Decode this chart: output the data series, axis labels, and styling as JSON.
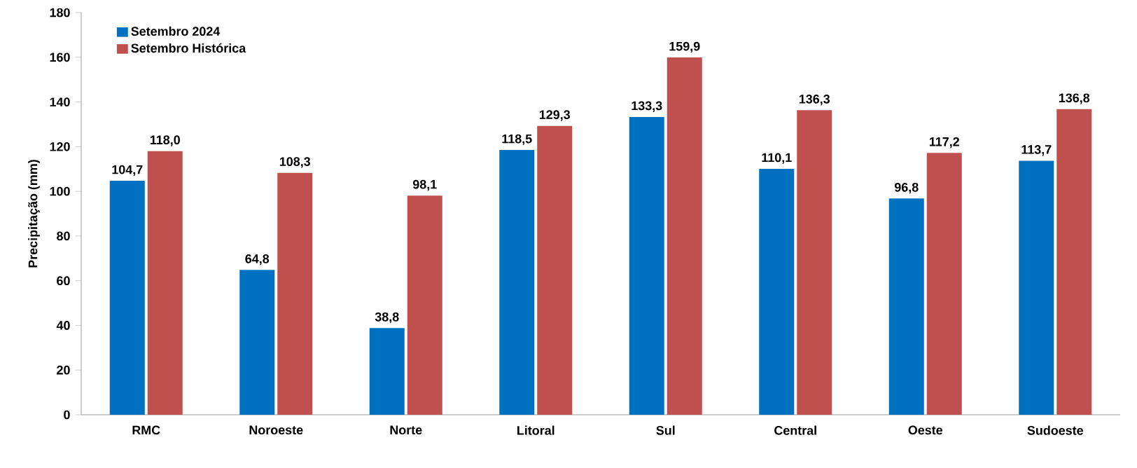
{
  "chart_data": {
    "type": "bar",
    "ylabel": "Precipitação (mm)",
    "categories": [
      "RMC",
      "Noroeste",
      "Norte",
      "Litoral",
      "Sul",
      "Central",
      "Oeste",
      "Sudoeste"
    ],
    "series": [
      {
        "name": "Setembro 2024",
        "color": "#0070c0",
        "values": [
          104.7,
          64.8,
          38.8,
          118.5,
          133.3,
          110.1,
          96.8,
          113.7
        ],
        "value_labels": [
          "104,7",
          "64,8",
          "38,8",
          "118,5",
          "133,3",
          "110,1",
          "96,8",
          "113,7"
        ]
      },
      {
        "name": "Setembro Histórica",
        "color": "#c0504d",
        "values": [
          118.0,
          108.3,
          98.1,
          129.3,
          159.9,
          136.3,
          117.2,
          136.8
        ],
        "value_labels": [
          "118,0",
          "108,3",
          "98,1",
          "129,3",
          "159,9",
          "136,3",
          "117,2",
          "136,8"
        ]
      }
    ],
    "ylim": [
      0,
      180
    ],
    "yticks": [
      0,
      20,
      40,
      60,
      80,
      100,
      120,
      140,
      160,
      180
    ],
    "legend": "top left"
  }
}
